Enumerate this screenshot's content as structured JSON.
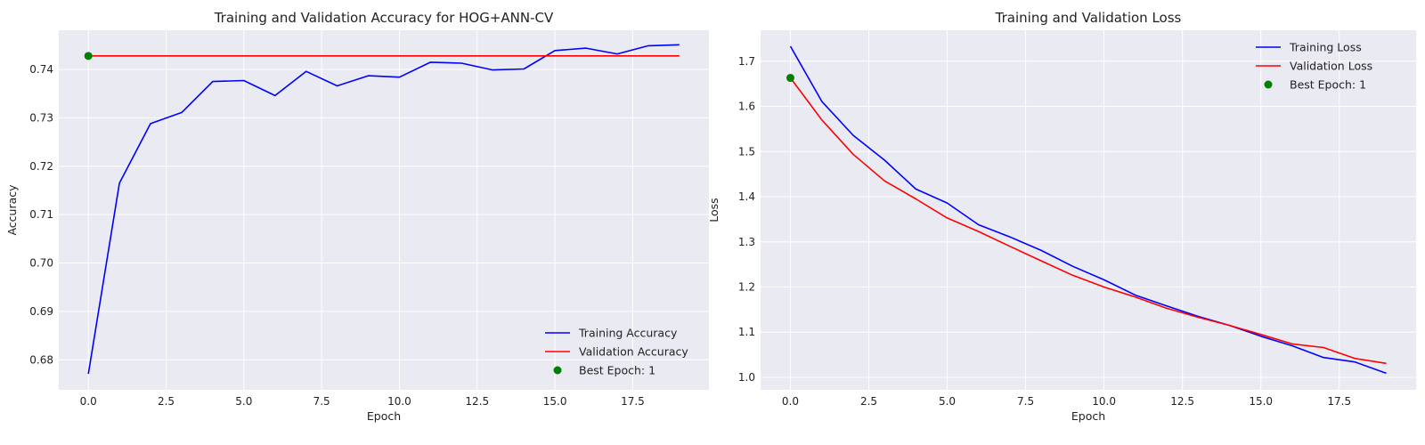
{
  "chart_data": [
    {
      "type": "line",
      "title": "Training and Validation Accuracy for HOG+ANN-CV",
      "xlabel": "Epoch",
      "ylabel": "Accuracy",
      "xlim": [
        -0.95,
        19.95
      ],
      "ylim": [
        0.6738,
        0.7481
      ],
      "xticks": [
        0.0,
        2.5,
        5.0,
        7.5,
        10.0,
        12.5,
        15.0,
        17.5
      ],
      "xtick_labels": [
        "0.0",
        "2.5",
        "5.0",
        "7.5",
        "10.0",
        "12.5",
        "15.0",
        "17.5"
      ],
      "yticks": [
        0.68,
        0.69,
        0.7,
        0.71,
        0.72,
        0.73,
        0.74
      ],
      "ytick_labels": [
        "0.68",
        "0.69",
        "0.70",
        "0.71",
        "0.72",
        "0.73",
        "0.74"
      ],
      "grid": true,
      "legend_position": "lower-right",
      "x": [
        0,
        1,
        2,
        3,
        4,
        5,
        6,
        7,
        8,
        9,
        10,
        11,
        12,
        13,
        14,
        15,
        16,
        17,
        18,
        19
      ],
      "series": [
        {
          "name": "Training Accuracy",
          "color": "#0000ff",
          "values": [
            0.6771,
            0.7165,
            0.7288,
            0.7311,
            0.7375,
            0.7377,
            0.7346,
            0.7396,
            0.7366,
            0.7387,
            0.7384,
            0.7415,
            0.7413,
            0.7399,
            0.7401,
            0.7439,
            0.7444,
            0.7432,
            0.7449,
            0.7451
          ]
        },
        {
          "name": "Validation Accuracy",
          "color": "#ff0000",
          "values": [
            0.7428,
            0.7428,
            0.7428,
            0.7428,
            0.7428,
            0.7428,
            0.7428,
            0.7428,
            0.7428,
            0.7428,
            0.7428,
            0.7428,
            0.7428,
            0.7428,
            0.7428,
            0.7428,
            0.7428,
            0.7428,
            0.7428,
            0.7428
          ]
        }
      ],
      "best_point": {
        "name": "Best Epoch: 1",
        "x": 0,
        "y": 0.7428,
        "color": "#008000"
      }
    },
    {
      "type": "line",
      "title": "Training and Validation Loss",
      "xlabel": "Epoch",
      "ylabel": "Loss",
      "xlim": [
        -0.95,
        19.95
      ],
      "ylim": [
        0.9724,
        1.7685
      ],
      "xticks": [
        0.0,
        2.5,
        5.0,
        7.5,
        10.0,
        12.5,
        15.0,
        17.5
      ],
      "xtick_labels": [
        "0.0",
        "2.5",
        "5.0",
        "7.5",
        "10.0",
        "12.5",
        "15.0",
        "17.5"
      ],
      "yticks": [
        1.0,
        1.1,
        1.2,
        1.3,
        1.4,
        1.5,
        1.6,
        1.7
      ],
      "ytick_labels": [
        "1.0",
        "1.1",
        "1.2",
        "1.3",
        "1.4",
        "1.5",
        "1.6",
        "1.7"
      ],
      "grid": true,
      "legend_position": "upper-right",
      "x": [
        0,
        1,
        2,
        3,
        4,
        5,
        6,
        7,
        8,
        9,
        10,
        11,
        12,
        13,
        14,
        15,
        16,
        17,
        18,
        19
      ],
      "series": [
        {
          "name": "Training Loss",
          "color": "#0000ff",
          "values": [
            1.733,
            1.611,
            1.536,
            1.481,
            1.417,
            1.386,
            1.338,
            1.311,
            1.281,
            1.246,
            1.216,
            1.182,
            1.158,
            1.135,
            1.115,
            1.091,
            1.07,
            1.044,
            1.034,
            1.009
          ]
        },
        {
          "name": "Validation Loss",
          "color": "#ff0000",
          "values": [
            1.663,
            1.57,
            1.494,
            1.435,
            1.395,
            1.353,
            1.323,
            1.29,
            1.258,
            1.226,
            1.2,
            1.178,
            1.153,
            1.133,
            1.115,
            1.095,
            1.074,
            1.066,
            1.042,
            1.031
          ]
        }
      ],
      "best_point": {
        "name": "Best Epoch: 1",
        "x": 0,
        "y": 1.663,
        "color": "#008000"
      }
    }
  ],
  "style": {
    "panel_bg": "#eaeaf2",
    "grid_color": "#ffffff",
    "text_color": "#222222"
  }
}
